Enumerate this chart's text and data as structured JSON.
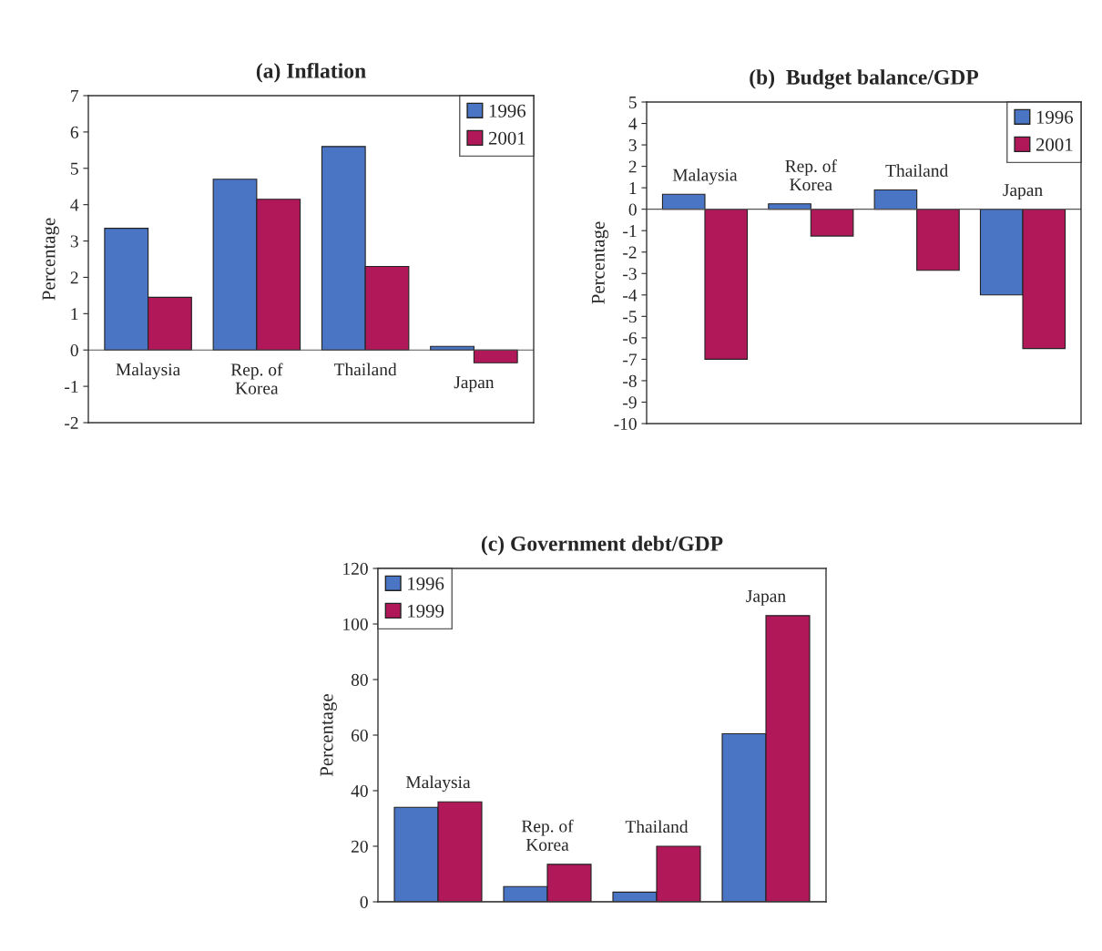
{
  "chart_data": [
    {
      "type": "bar",
      "title": "(a) Inflation",
      "ylabel": "Percentage",
      "categories": [
        "Malaysia",
        "Rep. of\nKorea",
        "Thailand",
        "Japan"
      ],
      "series": [
        {
          "name": "1996",
          "color": "#4a74c4",
          "values": [
            3.35,
            4.7,
            5.6,
            0.1
          ]
        },
        {
          "name": "2001",
          "color": "#b0185a",
          "values": [
            1.45,
            4.15,
            2.3,
            -0.35
          ]
        }
      ],
      "ylim": [
        -2,
        7
      ],
      "yticks": [
        -2,
        -1,
        0,
        1,
        2,
        3,
        4,
        5,
        6,
        7
      ],
      "grid": false,
      "legend": "top right"
    },
    {
      "type": "bar",
      "title": "(b)  Budget balance/GDP",
      "ylabel": "Percentage",
      "categories": [
        "Malaysia",
        "Rep. of\nKorea",
        "Thailand",
        "Japan"
      ],
      "series": [
        {
          "name": "1996",
          "color": "#4a74c4",
          "values": [
            0.7,
            0.25,
            0.9,
            -4.0
          ]
        },
        {
          "name": "2001",
          "color": "#b0185a",
          "values": [
            -7.0,
            -1.25,
            -2.85,
            -6.5
          ]
        }
      ],
      "ylim": [
        -10,
        5
      ],
      "yticks": [
        -10,
        -9,
        -8,
        -7,
        -6,
        -5,
        -4,
        -3,
        -2,
        -1,
        0,
        1,
        2,
        3,
        4,
        5
      ],
      "grid": false,
      "legend": "top right"
    },
    {
      "type": "bar",
      "title": "(c) Government debt/GDP",
      "ylabel": "Percentage",
      "categories": [
        "Malaysia",
        "Rep. of\nKorea",
        "Thailand",
        "Japan"
      ],
      "series": [
        {
          "name": "1996",
          "color": "#4a74c4",
          "values": [
            34,
            5.5,
            3.5,
            60.5
          ]
        },
        {
          "name": "1999",
          "color": "#b0185a",
          "values": [
            36,
            13.5,
            20,
            103
          ]
        }
      ],
      "ylim": [
        0,
        120
      ],
      "yticks": [
        0,
        20,
        40,
        60,
        80,
        100,
        120
      ],
      "grid": false,
      "legend": "top left"
    }
  ]
}
